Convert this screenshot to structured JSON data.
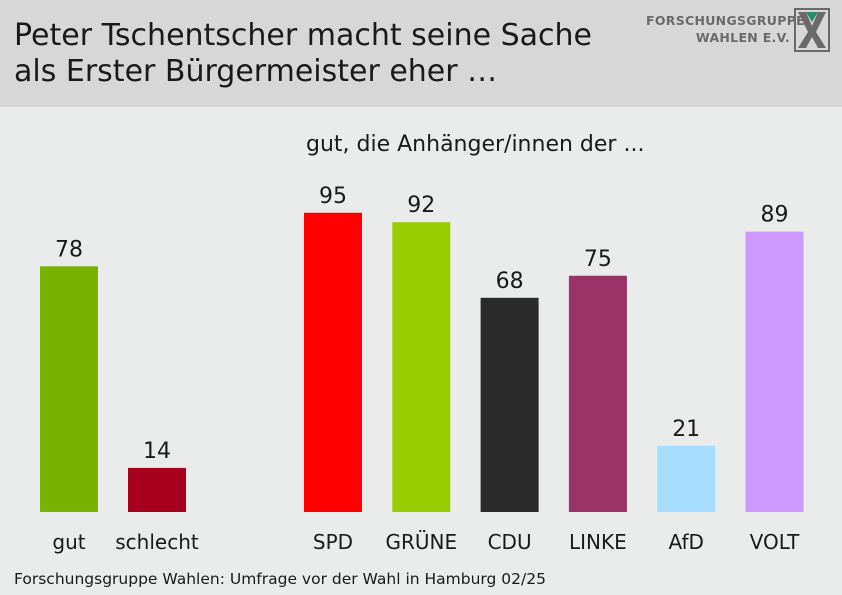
{
  "title_lines": [
    "Peter Tschentscher macht seine Sache",
    "als Erster Bürgermeister eher …"
  ],
  "logo": {
    "line1": "FORSCHUNGSGRUPPE",
    "line2": "WAHLEN E.V."
  },
  "footer": "Forschungsgruppe Wahlen: Umfrage vor der Wahl in Hamburg 02/25",
  "chart_data": [
    {
      "type": "bar",
      "categories": [
        "gut",
        "schlecht"
      ],
      "values": [
        78,
        14
      ],
      "colors": [
        "#79b300",
        "#a6001e"
      ],
      "ylim": [
        0,
        100
      ]
    },
    {
      "type": "bar",
      "title": "gut, die Anhänger/innen der ...",
      "categories": [
        "SPD",
        "GRÜNE",
        "CDU",
        "LINKE",
        "AfD",
        "VOLT"
      ],
      "values": [
        95,
        92,
        68,
        75,
        21,
        89
      ],
      "colors": [
        "#ff0000",
        "#99cc00",
        "#2b2b2b",
        "#993366",
        "#a6dcff",
        "#cc99ff"
      ],
      "ylim": [
        0,
        100
      ]
    }
  ]
}
